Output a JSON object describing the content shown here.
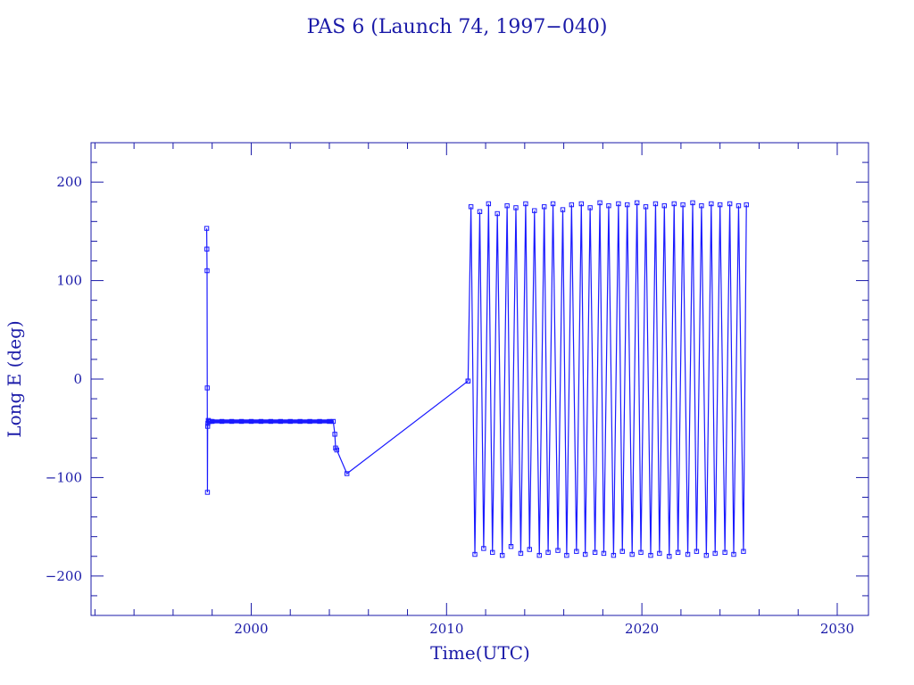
{
  "colors": {
    "axis": "#1a1aa8",
    "series": "#1a1aff",
    "background": "#ffffff"
  },
  "chart_data": {
    "type": "line",
    "title": "PAS 6 (Launch 74, 1997−040)",
    "xlabel": "Time(UTC)",
    "ylabel": "Long E (deg)",
    "xlim": [
      1991.8,
      2031.6
    ],
    "ylim": [
      -240,
      240
    ],
    "x_ticks": [
      2000,
      2010,
      2020,
      2030
    ],
    "x_tick_labels": [
      "2000",
      "2010",
      "2020",
      "2030"
    ],
    "y_ticks": [
      -200,
      -100,
      0,
      100,
      200
    ],
    "y_tick_labels": [
      "−200",
      "−100",
      "0",
      "100",
      "200"
    ],
    "marker": "open-square",
    "grid": false,
    "series": [
      {
        "x": [
          1997.72,
          1997.73,
          1997.74,
          1997.75,
          1997.76,
          1997.77,
          1997.78,
          1997.8,
          1997.84,
          1997.9,
          1998.0,
          1998.5,
          1999.0,
          1999.5,
          2000.0,
          2000.5,
          2001.0,
          2001.5,
          2002.0,
          2002.5,
          2003.0,
          2003.5,
          2004.0,
          2004.2,
          2004.28,
          2004.32,
          2004.38,
          2004.9,
          2011.1
        ],
        "y": [
          153,
          132,
          110,
          -9,
          -115,
          -48,
          -45,
          -42,
          -43,
          -43,
          -43,
          -43,
          -43,
          -43,
          -43,
          -43,
          -43,
          -43,
          -43,
          -43,
          -43,
          -43,
          -43,
          -43,
          -56,
          -70,
          -72,
          -96,
          -2
        ]
      },
      {
        "x": [
          2011.1,
          2011.25,
          2011.45,
          2011.7,
          2011.9,
          2012.15,
          2012.35,
          2012.6,
          2012.85,
          2013.1,
          2013.3,
          2013.55,
          2013.8,
          2014.05,
          2014.25,
          2014.5,
          2014.75,
          2015.0,
          2015.2,
          2015.45,
          2015.7,
          2015.95,
          2016.15,
          2016.4,
          2016.65,
          2016.9,
          2017.1,
          2017.35,
          2017.6,
          2017.85,
          2018.05,
          2018.3,
          2018.55,
          2018.8,
          2019.0,
          2019.25,
          2019.5,
          2019.75,
          2019.95,
          2020.2,
          2020.45,
          2020.7,
          2020.9,
          2021.15,
          2021.4,
          2021.65,
          2021.85,
          2022.1,
          2022.35,
          2022.6,
          2022.8,
          2023.05,
          2023.3,
          2023.55,
          2023.75,
          2024.0,
          2024.25,
          2024.5,
          2024.7,
          2024.95,
          2025.2,
          2025.35
        ],
        "y": [
          -2,
          175,
          -178,
          170,
          -172,
          178,
          -176,
          168,
          -179,
          176,
          -170,
          174,
          -177,
          178,
          -173,
          171,
          -179,
          175,
          -176,
          178,
          -174,
          172,
          -179,
          177,
          -175,
          178,
          -178,
          174,
          -176,
          179,
          -177,
          176,
          -179,
          178,
          -175,
          177,
          -178,
          179,
          -176,
          175,
          -179,
          178,
          -177,
          176,
          -180,
          178,
          -176,
          177,
          -178,
          179,
          -175,
          176,
          -179,
          178,
          -177,
          177,
          -176,
          178,
          -178,
          176,
          -175,
          177
        ]
      }
    ]
  }
}
